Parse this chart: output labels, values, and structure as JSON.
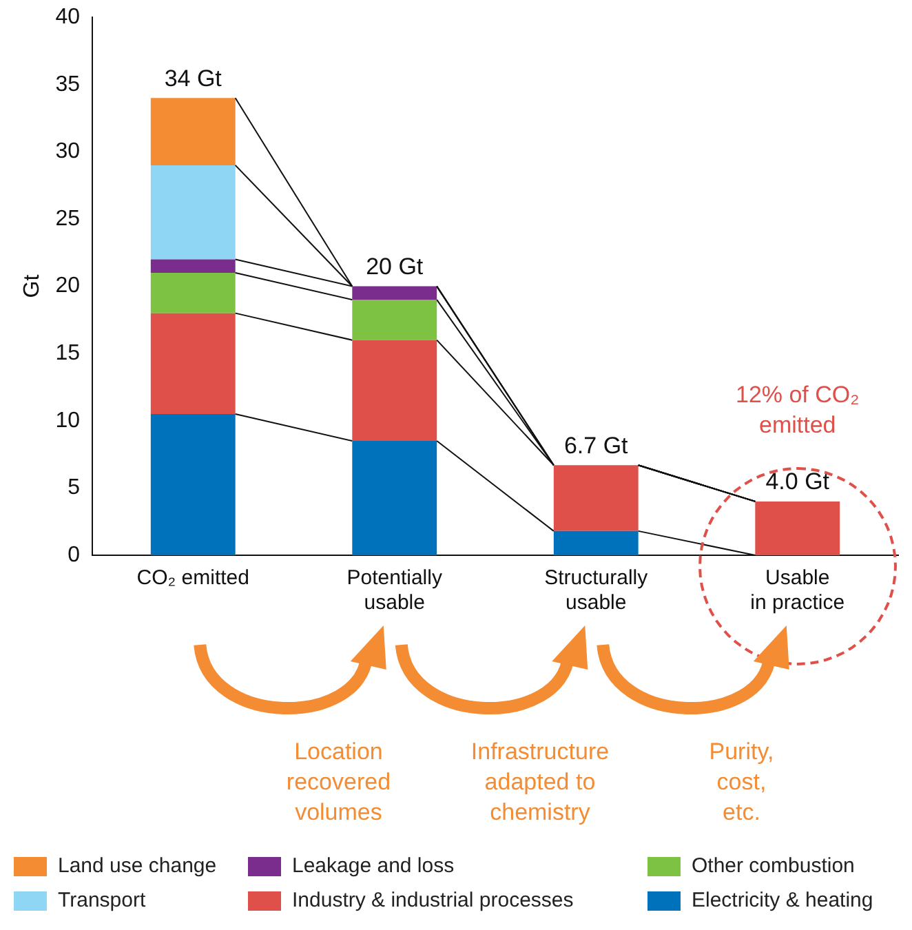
{
  "chart_data": {
    "type": "bar",
    "stacked": true,
    "ylabel": "Gt",
    "categories": [
      "CO₂ emitted",
      "Potentially usable",
      "Structurally usable",
      "Usable in practice"
    ],
    "series": [
      {
        "name": "Electricity & heating",
        "color": "#0072bc",
        "values": [
          10.5,
          8.5,
          1.8,
          0
        ]
      },
      {
        "name": "Industry & industrial processes",
        "color": "#e0504a",
        "values": [
          7.5,
          7.5,
          4.9,
          4.0
        ]
      },
      {
        "name": "Other combustion",
        "color": "#7dc242",
        "values": [
          3,
          3,
          0,
          0
        ]
      },
      {
        "name": "Leakage and loss",
        "color": "#7b2d8e",
        "values": [
          1,
          1,
          0,
          0
        ]
      },
      {
        "name": "Transport",
        "color": "#8fd6f5",
        "values": [
          7,
          0,
          0,
          0
        ]
      },
      {
        "name": "Land use change",
        "color": "#f48c34",
        "values": [
          5,
          0,
          0,
          0
        ]
      }
    ],
    "totals": [
      "34 Gt",
      "20 Gt",
      "6.7 Gt",
      "4.0 Gt"
    ],
    "ylim": [
      0,
      40
    ],
    "yticks": [
      0,
      5,
      10,
      15,
      20,
      25,
      30,
      35,
      40
    ],
    "grid": false,
    "legend": "bottom",
    "annotations": [
      "12% of CO₂ emitted",
      "Location recovered volumes",
      "Infrastructure adapted to chemistry",
      "Purity, cost, etc."
    ]
  }
}
